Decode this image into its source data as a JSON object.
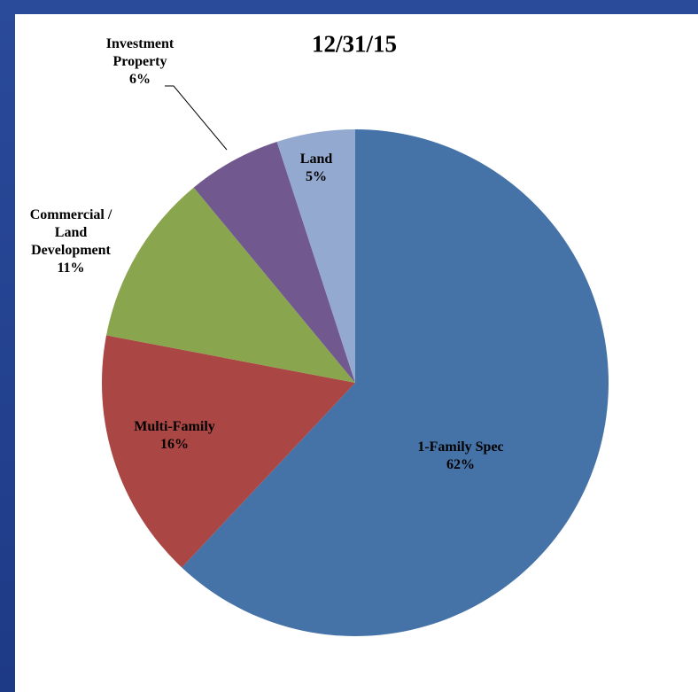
{
  "chart_data": {
    "type": "pie",
    "title": "12/31/15",
    "categories": [
      "1-Family Spec",
      "Multi-Family",
      "Commercial / Land Development",
      "Investment Property",
      "Land"
    ],
    "values": [
      62,
      16,
      11,
      6,
      5
    ],
    "value_labels": [
      "62%",
      "16%",
      "11%",
      "6%",
      "5%"
    ],
    "colors": [
      "#4572a7",
      "#aa4643",
      "#89a54e",
      "#71588f",
      "#93a9cf"
    ]
  }
}
